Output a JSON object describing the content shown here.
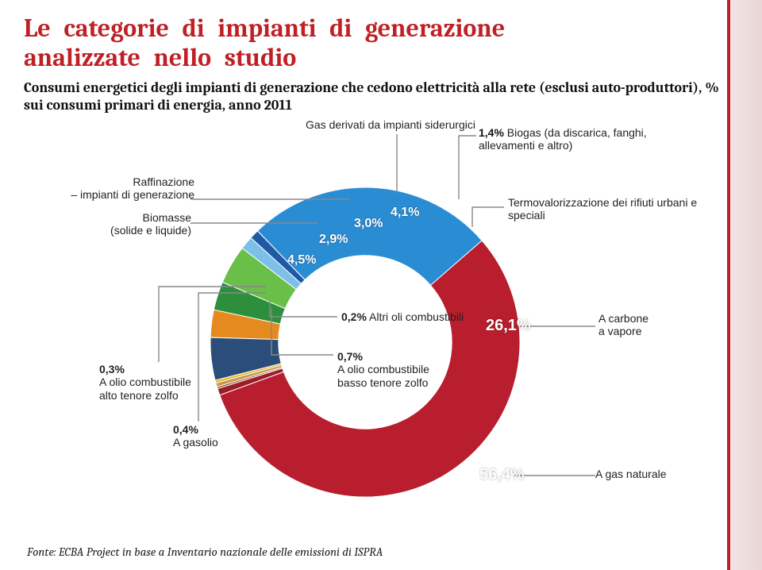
{
  "title": {
    "line1": "Le categorie di impianti di generazione",
    "line2": "analizzate nello studio",
    "color": "#c02025",
    "fontsize": 32
  },
  "subtitle": {
    "text": "Consumi energetici degli impianti di generazione che cedono elettricità alla rete (esclusi auto-produttori), % sui consumi primari di energia, anno 2011",
    "color": "#111111",
    "fontsize": 18
  },
  "donut": {
    "type": "donut",
    "inner_radius_ratio": 0.56,
    "background_color": "#ffffff",
    "segments": [
      {
        "key": "gasnat",
        "value": 56.4,
        "color": "#b81e2d",
        "pct_label": "56,4%",
        "label": "A gas naturale"
      },
      {
        "key": "carbone",
        "value": 26.1,
        "color": "#2a8dd4",
        "pct_label": "26,1%",
        "label": "A carbone a vapore"
      },
      {
        "key": "termov",
        "value": 1.0,
        "color": "#1f5aa6",
        "pct_label": "",
        "label": "Termovalorizzazione dei rifiuti urbani e speciali"
      },
      {
        "key": "biogas",
        "value": 1.4,
        "color": "#7cc0e7",
        "pct_label": "1,4%",
        "label": "Biogas (da discarica, fanghi, allevamenti e altro)"
      },
      {
        "key": "siderur",
        "value": 4.1,
        "color": "#69bf47",
        "pct_label": "4,1%",
        "label": "Gas derivati da impianti siderurgici"
      },
      {
        "key": "raffin",
        "value": 3.0,
        "color": "#2d8f3c",
        "pct_label": "3,0%",
        "label": "Raffinazione – impianti di generazione"
      },
      {
        "key": "biomasse",
        "value": 2.9,
        "color": "#e58a1f",
        "pct_label": "2,9%",
        "label": "Biomasse (solide e liquide)"
      },
      {
        "key": "bluewedge",
        "value": 4.5,
        "color": "#2a4d7a",
        "pct_label": "4,5%",
        "label": ""
      },
      {
        "key": "olioalto",
        "value": 0.3,
        "color": "#e8b72a",
        "pct_label": "0,3%",
        "label": "A olio combustibile alto tenore zolfo"
      },
      {
        "key": "gasolio",
        "value": 0.4,
        "color": "#c89646",
        "pct_label": "0,4%",
        "label": "A gasolio"
      },
      {
        "key": "altriol",
        "value": 0.2,
        "color": "#7f3d2a",
        "pct_label": "0,2%",
        "label": "Altri oli combustibili"
      },
      {
        "key": "oliobasso",
        "value": 0.7,
        "color": "#9a1d27",
        "pct_label": "0,7%",
        "label": "A olio combustibile basso tenore zolfo"
      }
    ],
    "label_fontsize": 14,
    "pct_fontsize": 16
  },
  "footer": {
    "text": "Fonte: ECBA Project in base a Inventario nazionale delle emissioni di ISPRA"
  }
}
